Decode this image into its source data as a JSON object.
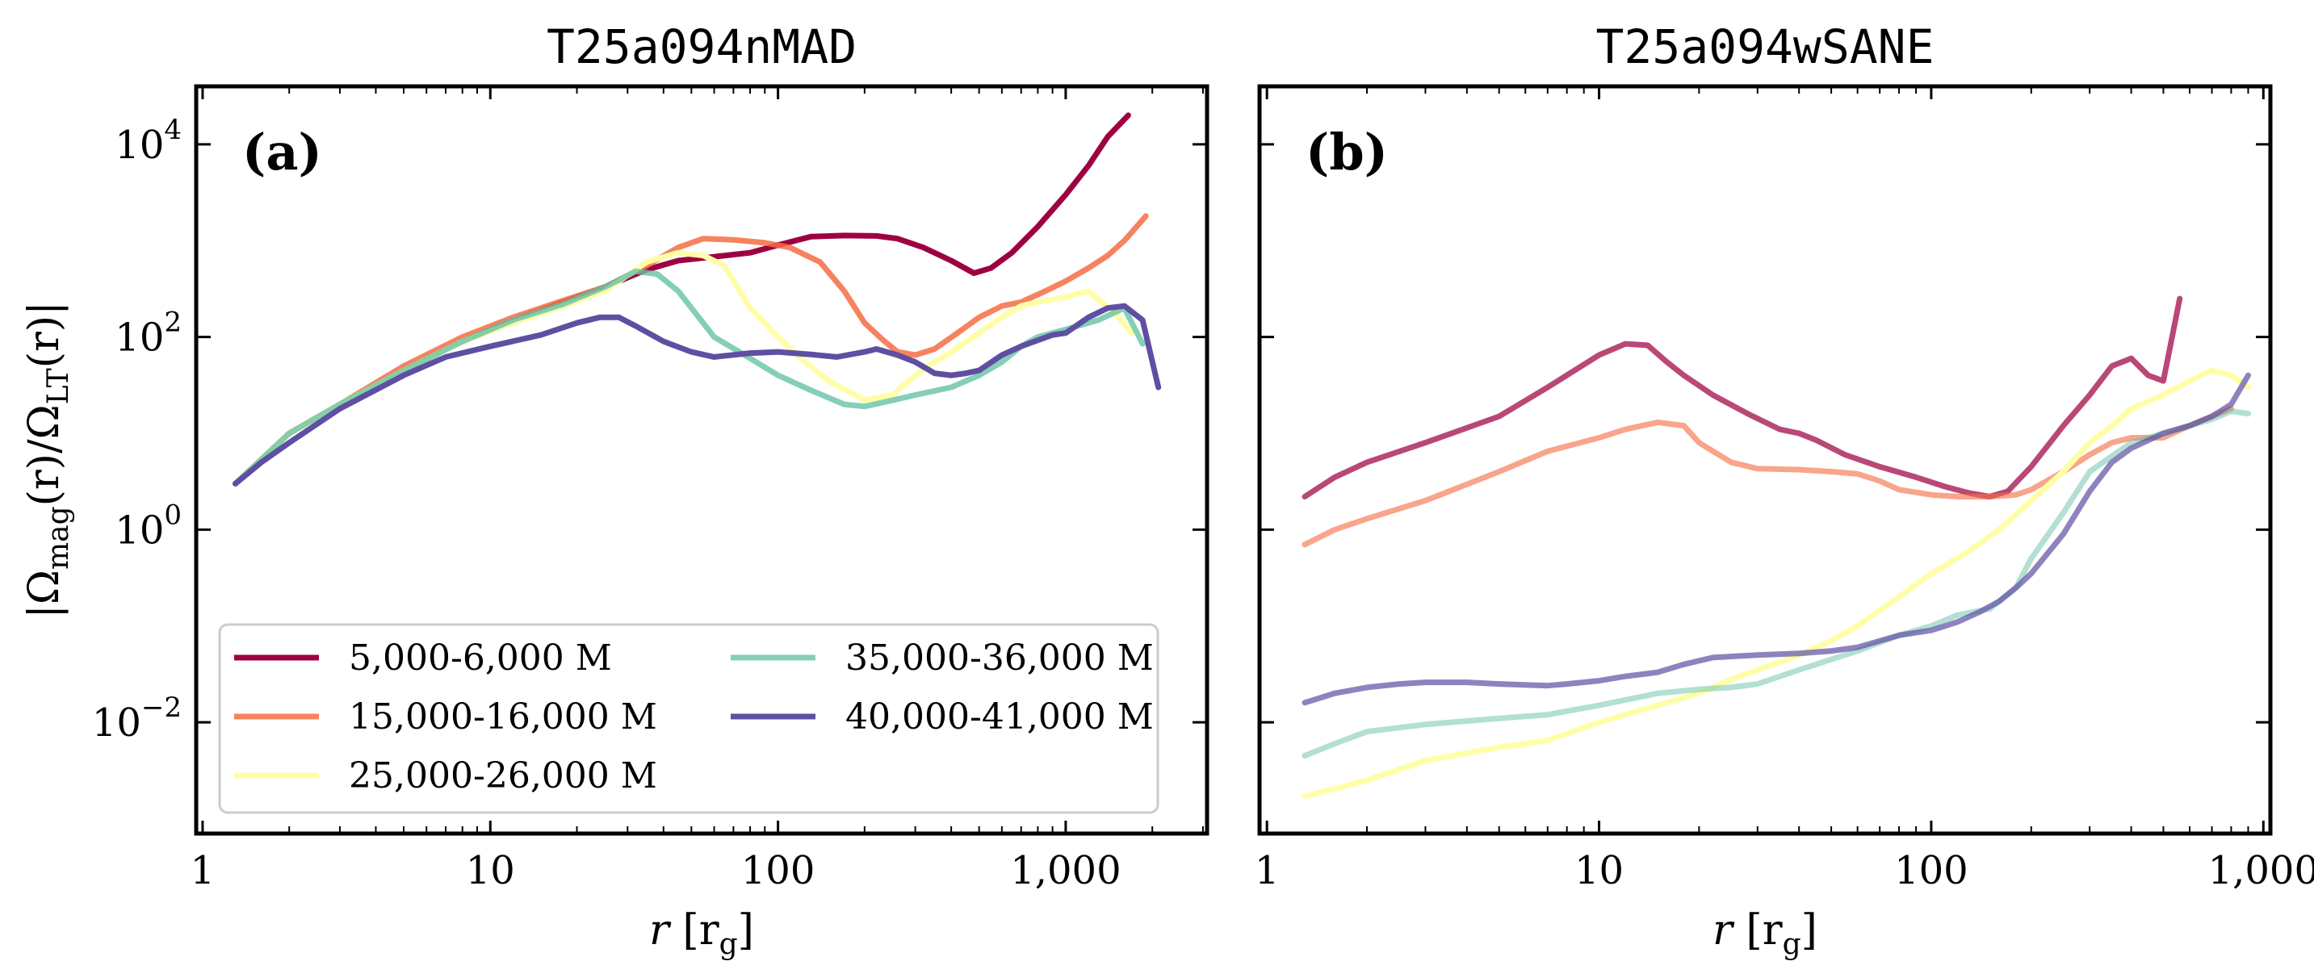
{
  "figure": {
    "ylabel_parts": [
      "|Ω",
      "mag",
      "(r)/Ω",
      "LT",
      "(r)|"
    ],
    "xlabel_parts": [
      "r",
      " [r",
      "g",
      "]"
    ]
  },
  "chart_data": [
    {
      "type": "line",
      "title": "T25a094nMAD",
      "panel_label": "(a)",
      "xscale": "log",
      "yscale": "log",
      "xlim": [
        0.95,
        3100
      ],
      "ylim": [
        0.0007,
        40000
      ],
      "xticks": [
        {
          "value": 1,
          "label": "1"
        },
        {
          "value": 10,
          "label": "10"
        },
        {
          "value": 100,
          "label": "100"
        },
        {
          "value": 1000,
          "label": "1,000"
        }
      ],
      "yticks": [
        {
          "value": 0.01,
          "base": "10",
          "exp": "−2"
        },
        {
          "value": 1,
          "base": "10",
          "exp": "0"
        },
        {
          "value": 100,
          "base": "10",
          "exp": "2"
        },
        {
          "value": 10000,
          "base": "10",
          "exp": "4"
        }
      ],
      "legend": {
        "position": "lower-left",
        "columns": 2
      },
      "series": [
        {
          "name": "5,000-6,000 M",
          "color": "#9e0142",
          "opacity": 1,
          "x": [
            1.3,
            2,
            3,
            5,
            8,
            12,
            18,
            25,
            35,
            45,
            60,
            80,
            100,
            130,
            170,
            220,
            260,
            320,
            400,
            480,
            550,
            650,
            800,
            1000,
            1200,
            1400,
            1650
          ],
          "y": [
            3,
            10,
            20,
            45,
            90,
            150,
            230,
            330,
            500,
            620,
            680,
            750,
            900,
            1100,
            1130,
            1120,
            1050,
            850,
            620,
            460,
            520,
            750,
            1400,
            3000,
            6000,
            12000,
            20000
          ]
        },
        {
          "name": "15,000-16,000 M",
          "color": "#f46d43",
          "opacity": 0.85,
          "x": [
            1.3,
            2,
            3,
            5,
            8,
            12,
            18,
            25,
            35,
            45,
            55,
            70,
            90,
            110,
            140,
            170,
            200,
            230,
            260,
            300,
            350,
            420,
            500,
            600,
            700,
            850,
            1000,
            1200,
            1400,
            1600,
            1900
          ],
          "y": [
            3,
            10,
            20,
            50,
            100,
            160,
            240,
            330,
            550,
            850,
            1050,
            1020,
            950,
            850,
            600,
            300,
            140,
            95,
            70,
            65,
            75,
            110,
            160,
            210,
            230,
            300,
            380,
            520,
            700,
            1000,
            1800
          ]
        },
        {
          "name": "25,000-26,000 M",
          "color": "#fffea8",
          "opacity": 1,
          "x": [
            1.3,
            2,
            3,
            5,
            8,
            12,
            18,
            25,
            35,
            45,
            55,
            65,
            80,
            100,
            120,
            150,
            200,
            250,
            300,
            350,
            400,
            500,
            600,
            700,
            800,
            1000,
            1200,
            1500,
            1700
          ],
          "y": [
            3,
            10,
            20,
            45,
            90,
            140,
            210,
            300,
            600,
            750,
            700,
            550,
            200,
            100,
            60,
            35,
            22,
            25,
            40,
            55,
            70,
            110,
            160,
            210,
            230,
            260,
            300,
            170,
            110
          ]
        },
        {
          "name": "35,000-36,000 M",
          "color": "#66c2a5",
          "opacity": 0.8,
          "x": [
            1.3,
            2,
            3,
            5,
            8,
            12,
            18,
            25,
            32,
            38,
            45,
            60,
            80,
            100,
            130,
            170,
            200,
            250,
            300,
            400,
            500,
            600,
            700,
            800,
            1000,
            1300,
            1600,
            1850
          ],
          "y": [
            3,
            10,
            20,
            45,
            90,
            150,
            220,
            330,
            480,
            450,
            300,
            100,
            60,
            40,
            28,
            20,
            19,
            22,
            25,
            30,
            40,
            55,
            80,
            100,
            120,
            150,
            200,
            85
          ]
        },
        {
          "name": "40,000-41,000 M",
          "color": "#5e4fa2",
          "opacity": 1,
          "x": [
            1.3,
            1.6,
            2,
            3,
            5,
            7,
            10,
            15,
            20,
            24,
            28,
            32,
            40,
            50,
            60,
            80,
            100,
            130,
            160,
            200,
            220,
            260,
            300,
            350,
            400,
            450,
            500,
            600,
            700,
            900,
            1000,
            1200,
            1400,
            1600,
            1850,
            2100
          ],
          "y": [
            3,
            5,
            8,
            18,
            40,
            62,
            80,
            105,
            140,
            160,
            160,
            130,
            90,
            70,
            62,
            68,
            70,
            66,
            62,
            70,
            75,
            65,
            55,
            42,
            40,
            42,
            45,
            65,
            80,
            105,
            110,
            160,
            200,
            210,
            150,
            30
          ]
        }
      ]
    },
    {
      "type": "line",
      "title": "T25a094wSANE",
      "panel_label": "(b)",
      "xscale": "log",
      "yscale": "log",
      "xlim": [
        0.95,
        1050
      ],
      "ylim": [
        0.0007,
        40000
      ],
      "xticks": [
        {
          "value": 1,
          "label": "1"
        },
        {
          "value": 10,
          "label": "10"
        },
        {
          "value": 100,
          "label": "100"
        },
        {
          "value": 1000,
          "label": "1,000"
        }
      ],
      "yticks": [
        {
          "value": 0.01
        },
        {
          "value": 1
        },
        {
          "value": 100
        },
        {
          "value": 10000
        }
      ],
      "series": [
        {
          "name": "5,000-6,000 M",
          "color": "#9e0142",
          "opacity": 0.72,
          "x": [
            1.3,
            1.6,
            2,
            3,
            5,
            7,
            10,
            12,
            14,
            16,
            18,
            22,
            28,
            35,
            40,
            45,
            55,
            70,
            90,
            110,
            130,
            150,
            170,
            200,
            250,
            300,
            350,
            400,
            450,
            500,
            560
          ],
          "y": [
            2.2,
            3.5,
            5,
            8,
            15,
            30,
            65,
            85,
            82,
            55,
            40,
            25,
            16,
            11,
            10,
            8.5,
            6,
            4.5,
            3.5,
            2.8,
            2.4,
            2.2,
            2.5,
            4.5,
            12,
            25,
            50,
            60,
            40,
            35,
            250
          ]
        },
        {
          "name": "15,000-16,000 M",
          "color": "#f46d43",
          "opacity": 0.62,
          "x": [
            1.3,
            1.6,
            2,
            3,
            5,
            7,
            10,
            12,
            15,
            18,
            20,
            25,
            30,
            40,
            50,
            60,
            70,
            80,
            100,
            120,
            150,
            180,
            200,
            250,
            300,
            350,
            400,
            500,
            600,
            700,
            800
          ],
          "y": [
            0.7,
            1,
            1.3,
            2,
            4,
            6.5,
            9,
            11,
            13,
            12,
            8,
            5,
            4.3,
            4.2,
            4,
            3.8,
            3.2,
            2.6,
            2.3,
            2.2,
            2.2,
            2.3,
            2.6,
            4,
            6,
            8,
            9,
            9,
            12,
            15,
            18
          ]
        },
        {
          "name": "25,000-26,000 M",
          "color": "#fffea8",
          "opacity": 1,
          "x": [
            1.3,
            2,
            3,
            5,
            7,
            10,
            15,
            20,
            25,
            30,
            40,
            50,
            60,
            80,
            100,
            130,
            160,
            200,
            250,
            300,
            350,
            400,
            500,
            600,
            700,
            800,
            900
          ],
          "y": [
            0.0017,
            0.0025,
            0.004,
            0.0055,
            0.0065,
            0.01,
            0.015,
            0.02,
            0.028,
            0.035,
            0.05,
            0.07,
            0.1,
            0.2,
            0.35,
            0.6,
            1,
            2,
            4,
            8,
            12,
            18,
            25,
            35,
            45,
            40,
            30
          ]
        },
        {
          "name": "35,000-36,000 M",
          "color": "#66c2a5",
          "opacity": 0.5,
          "x": [
            1.3,
            1.6,
            2,
            3,
            5,
            7,
            10,
            15,
            20,
            25,
            30,
            40,
            50,
            60,
            80,
            100,
            120,
            150,
            180,
            200,
            250,
            300,
            400,
            500,
            600,
            700,
            800,
            900
          ],
          "y": [
            0.0045,
            0.006,
            0.008,
            0.0095,
            0.011,
            0.012,
            0.015,
            0.02,
            0.022,
            0.023,
            0.025,
            0.035,
            0.045,
            0.055,
            0.08,
            0.1,
            0.13,
            0.15,
            0.25,
            0.5,
            1.5,
            4,
            8,
            10,
            12,
            14,
            17,
            16
          ]
        },
        {
          "name": "40,000-41,000 M",
          "color": "#5e4fa2",
          "opacity": 0.7,
          "x": [
            1.3,
            1.6,
            2,
            2.5,
            3,
            4,
            5,
            7,
            8,
            10,
            12,
            15,
            18,
            22,
            30,
            40,
            50,
            60,
            70,
            80,
            100,
            120,
            140,
            160,
            180,
            200,
            250,
            300,
            350,
            400,
            500,
            600,
            700,
            800,
            900
          ],
          "y": [
            0.016,
            0.02,
            0.023,
            0.025,
            0.026,
            0.026,
            0.025,
            0.024,
            0.025,
            0.027,
            0.03,
            0.033,
            0.04,
            0.047,
            0.05,
            0.052,
            0.055,
            0.06,
            0.07,
            0.08,
            0.09,
            0.11,
            0.14,
            0.18,
            0.25,
            0.35,
            0.9,
            2.5,
            5,
            7,
            10,
            12,
            15,
            20,
            40
          ]
        }
      ]
    }
  ]
}
